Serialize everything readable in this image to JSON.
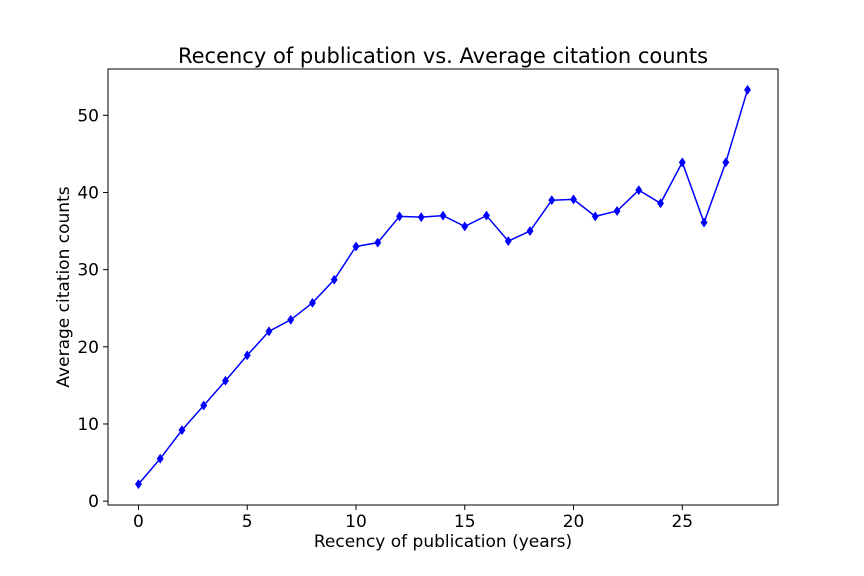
{
  "chart_data": {
    "type": "line",
    "title": "Recency of publication vs. Average citation counts",
    "xlabel": "Recency of publication (years)",
    "ylabel": "Average citation counts",
    "xlim": [
      -1.4,
      29.4
    ],
    "ylim": [
      -0.5,
      56
    ],
    "xticks": [
      0,
      5,
      10,
      15,
      20,
      25
    ],
    "yticks": [
      0,
      10,
      20,
      30,
      40,
      50
    ],
    "grid": false,
    "series": [
      {
        "color": "#0000ff",
        "marker": "diamond",
        "x": [
          0,
          1,
          2,
          3,
          4,
          5,
          6,
          7,
          8,
          9,
          10,
          11,
          12,
          13,
          14,
          15,
          16,
          17,
          18,
          19,
          20,
          21,
          22,
          23,
          24,
          25,
          26,
          27,
          28
        ],
        "y": [
          2.2,
          5.5,
          9.2,
          12.4,
          15.6,
          18.9,
          22.0,
          23.5,
          25.7,
          28.7,
          33.0,
          33.5,
          36.9,
          36.8,
          37.0,
          35.6,
          37.0,
          33.7,
          35.0,
          39.0,
          39.1,
          36.9,
          37.6,
          40.3,
          38.6,
          43.9,
          36.1,
          43.9,
          53.3
        ]
      }
    ]
  }
}
